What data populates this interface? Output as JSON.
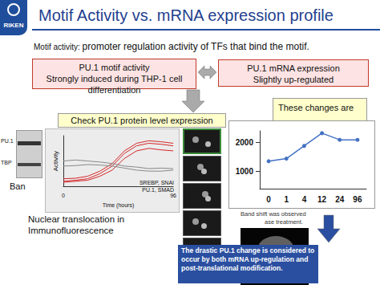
{
  "slide": {
    "logo": "RIKEN",
    "title": "Motif Activity vs. mRNA expression profile",
    "definition_label": "Motif activity:",
    "definition": "promoter regulation activity of TFs that bind the motif.",
    "motif_box": [
      "PU.1 motif activity",
      "Strongly induced during THP-1 cell differentiation"
    ],
    "mrna_box": [
      "PU.1 mRNA expression",
      "Slightly up-regulated"
    ],
    "changes_box": "These changes are",
    "check_box": "Check PU.1 protein level expression",
    "blot_labels": [
      "PU.1",
      "TBP"
    ],
    "band_left": "Ban",
    "band_right": [
      "Band shift was observed",
      "ase treatment."
    ],
    "translocation": [
      "Nuclear translocation in",
      "Immunofluorescence"
    ],
    "conclusion": "The drastic PU.1 change is considered to occur by both mRNA up-regulation and post-translational modification."
  },
  "chart_data": [
    {
      "type": "line",
      "ylabel": "Activity",
      "xlabel": "Time (hours)",
      "categories": [
        "0",
        null,
        null,
        null,
        null,
        null,
        null,
        null,
        null,
        "96"
      ],
      "ylim": [
        0,
        10
      ],
      "grid": false,
      "tick_labels": "x",
      "marker": "none",
      "annotations": [
        "SREBP, SNAI",
        "PU.1, SMAD"
      ],
      "series": [
        {
          "color": "#d62728",
          "values": [
            1,
            1.2,
            1.5,
            2.5,
            4,
            6.5,
            8,
            8.5,
            8.3,
            8
          ]
        },
        {
          "color": "#d62728",
          "values": [
            1.5,
            1.6,
            2,
            3,
            4.5,
            7,
            8.5,
            9,
            8.8,
            8.5
          ]
        },
        {
          "color": "#d62728",
          "values": [
            0.8,
            1,
            1.2,
            2,
            3.2,
            5.5,
            7,
            7.5,
            7.2,
            7
          ]
        },
        {
          "color": "#888888",
          "values": [
            5,
            5.2,
            5,
            4.8,
            4.5,
            4,
            3.8,
            3.5,
            3.6,
            3.5
          ]
        },
        {
          "color": "#888888",
          "values": [
            4,
            4.1,
            4.3,
            4.2,
            4,
            3.6,
            3.2,
            3,
            3,
            3.2
          ]
        }
      ]
    },
    {
      "type": "line",
      "categories": [
        "0",
        "1",
        "4",
        "12",
        "24",
        "96"
      ],
      "values": [
        1350,
        1440,
        1880,
        2320,
        2090,
        2090
      ],
      "color": "#4472c4",
      "marker": "circle",
      "ylim": [
        400,
        2400
      ],
      "yticks": [
        1000,
        2000
      ],
      "grid": false
    }
  ]
}
